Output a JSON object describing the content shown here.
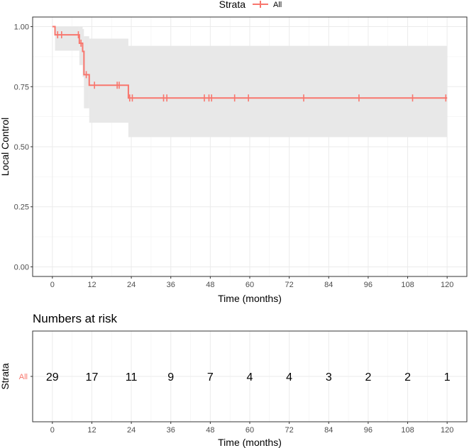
{
  "legend": {
    "title": "Strata",
    "entries": [
      "All"
    ]
  },
  "colors": {
    "series": "#f8766d",
    "ci_band": "#e8e8e8",
    "grid": "#ebebeb",
    "border": "#333333"
  },
  "chart_data": [
    {
      "type": "line",
      "subtype": "kaplan-meier",
      "title": "",
      "xlabel": "Time (months)",
      "ylabel": "Local Control",
      "xlim": [
        -6,
        126
      ],
      "ylim": [
        -0.04,
        1.04
      ],
      "xticks": [
        0,
        12,
        24,
        36,
        48,
        60,
        72,
        84,
        96,
        108,
        120
      ],
      "yticks": [
        0,
        0.25,
        0.5,
        0.75,
        1
      ],
      "ytick_labels": [
        "0.00",
        "0.25",
        "0.50",
        "0.75",
        "1.00"
      ],
      "grid": true,
      "legend_position": "top",
      "series": [
        {
          "name": "All",
          "steps": [
            [
              0,
              1.0
            ],
            [
              0.8,
              0.966
            ],
            [
              8.2,
              0.931
            ],
            [
              9.2,
              0.897
            ],
            [
              9.6,
              0.8
            ],
            [
              11.2,
              0.756
            ],
            [
              23.1,
              0.703
            ],
            [
              120,
              0.703
            ]
          ],
          "censor_times": [
            1.6,
            2.8,
            7.9,
            8.7,
            10.3,
            12.8,
            19.7,
            20.3,
            23.5,
            24.3,
            33.8,
            34.8,
            46.2,
            47.6,
            48.4,
            55.4,
            59.6,
            76.4,
            93.2,
            109.5,
            119.6
          ],
          "ci_band": [
            {
              "x0": 0,
              "x1": 0.8,
              "lower": 1.0,
              "upper": 1.0
            },
            {
              "x0": 0.8,
              "x1": 8.2,
              "lower": 0.9,
              "upper": 1.0
            },
            {
              "x0": 8.2,
              "x1": 9.2,
              "lower": 0.84,
              "upper": 1.0
            },
            {
              "x0": 9.2,
              "x1": 9.6,
              "lower": 0.79,
              "upper": 0.99
            },
            {
              "x0": 9.6,
              "x1": 11.2,
              "lower": 0.66,
              "upper": 0.96
            },
            {
              "x0": 11.2,
              "x1": 23.1,
              "lower": 0.6,
              "upper": 0.95
            },
            {
              "x0": 23.1,
              "x1": 120,
              "lower": 0.54,
              "upper": 0.92
            }
          ]
        }
      ]
    },
    {
      "type": "table",
      "title": "Numbers at risk",
      "xlabel": "Time (months)",
      "ylabel": "Strata",
      "row_labels": [
        "All"
      ],
      "xticks": [
        0,
        12,
        24,
        36,
        48,
        60,
        72,
        84,
        96,
        108,
        120
      ],
      "values": [
        [
          29,
          17,
          11,
          9,
          7,
          4,
          4,
          3,
          2,
          2,
          1
        ]
      ]
    }
  ]
}
